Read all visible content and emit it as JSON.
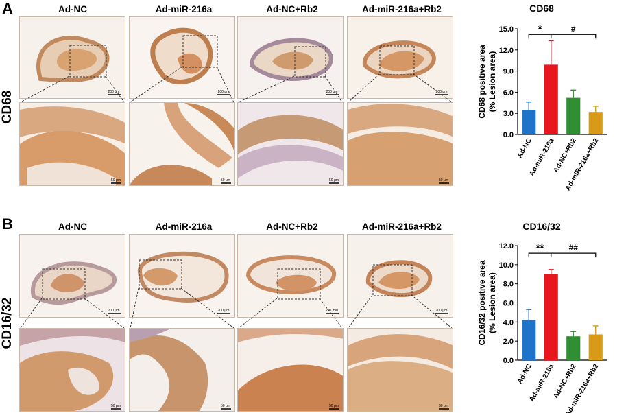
{
  "panels": [
    {
      "letter": "A",
      "row_label": "CD68",
      "groups": [
        "Ad-NC",
        "Ad-miR-216a",
        "Ad-NC+Rb2",
        "Ad-miR-216a+Rb2"
      ],
      "top_scale_bars": [
        "200 μm",
        "200 μm",
        "200 μm",
        "200 μm"
      ],
      "bottom_scale_bars": [
        "50 μm",
        "50 μm",
        "50 μm",
        "50 μm"
      ]
    },
    {
      "letter": "B",
      "row_label": "CD16/32",
      "groups": [
        "Ad-NC",
        "Ad-miR-216a",
        "Ad-NC+Rb2",
        "Ad-miR-216a+Rb2"
      ],
      "top_scale_bars": [
        "200 μm",
        "200 μm",
        "200 mM",
        "200 μm"
      ],
      "bottom_scale_bars": [
        "50 μm",
        "50 μm",
        "50 μm",
        "50 μm"
      ]
    }
  ],
  "colors": {
    "Ad-NC": "#1f73c8",
    "Ad-miR-216a": "#e8171d",
    "Ad-NC+Rb2": "#2f8f32",
    "Ad-miR-216a+Rb2": "#d99a18",
    "stain": "#c98a55",
    "background_tissue": "#f4ece4"
  },
  "chart_data": [
    {
      "type": "bar",
      "title": "CD68",
      "ylabel": "CD68 positive area\n(% Lesion area)",
      "ylabel_lines": [
        "CD68 positive area",
        "(% Lesion area)"
      ],
      "categories": [
        "Ad-NC",
        "Ad-miR-216a",
        "Ad-NC+Rb2",
        "Ad-miR-216a+Rb2"
      ],
      "values": [
        3.5,
        9.9,
        5.2,
        3.2
      ],
      "errors": [
        1.1,
        3.4,
        1.1,
        0.8
      ],
      "ylim": [
        0,
        15
      ],
      "yticks": [
        "0.0",
        "3.0",
        "6.0",
        "9.0",
        "12.0",
        "15.0"
      ],
      "annotations": [
        "*",
        "#"
      ]
    },
    {
      "type": "bar",
      "title": "CD16/32",
      "ylabel": "CD16/32  positive area\n(% Lesion area)",
      "ylabel_lines": [
        "CD16/32  positive area",
        "(% Lesion area)"
      ],
      "categories": [
        "Ad-NC",
        "Ad-miR-216a",
        "Ad-NC+Rb2",
        "Ad-miR-216a+Rb2"
      ],
      "values": [
        4.2,
        9.0,
        2.5,
        2.7
      ],
      "errors": [
        1.1,
        0.5,
        0.5,
        0.9
      ],
      "ylim": [
        0,
        12
      ],
      "yticks": [
        "0.0",
        "2.0",
        "4.0",
        "6.0",
        "8.0",
        "10.0",
        "12.0"
      ],
      "annotations": [
        "**",
        "##"
      ]
    }
  ]
}
